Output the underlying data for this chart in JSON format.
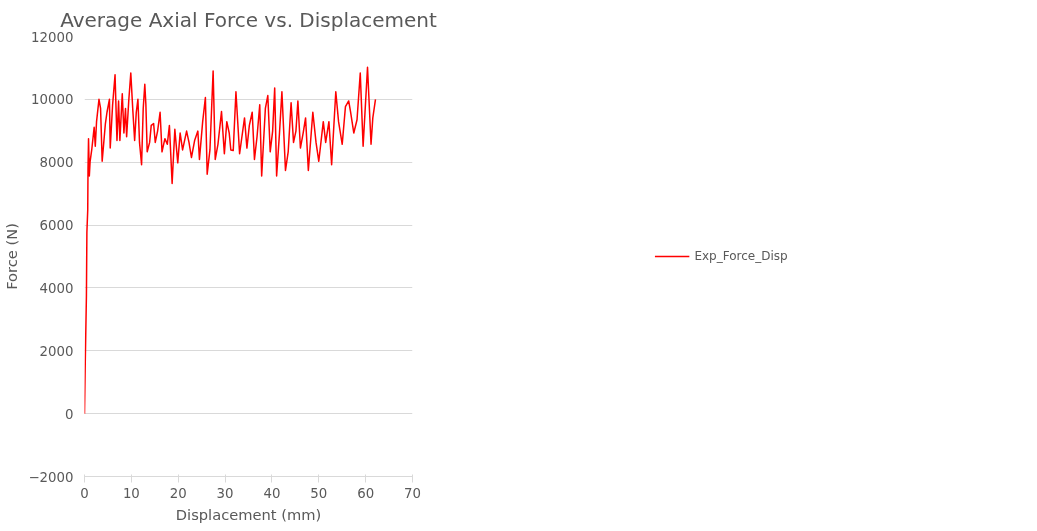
{
  "chart_data": {
    "type": "line",
    "title": "Average Axial Force vs. Displacement",
    "xlabel": "Displacement (mm)",
    "ylabel": "Force (N)",
    "xlim": [
      0,
      70
    ],
    "xticks": [
      0,
      10,
      20,
      30,
      40,
      50,
      60,
      70
    ],
    "ylim": [
      -2000,
      12000
    ],
    "yticks": [
      -2000,
      0,
      2000,
      4000,
      6000,
      8000,
      10000,
      12000
    ],
    "grid": "y",
    "legend": "right",
    "marker": "none",
    "line_style": "solid",
    "series": [
      {
        "name": "Exp_Force_Disp",
        "color": "#ff0000",
        "x": [
          0,
          0.17,
          0.41,
          0.51,
          0.69,
          0.75,
          0.86,
          1.03,
          1.2,
          1.54,
          2.06,
          2.3,
          2.57,
          3.09,
          3.43,
          3.77,
          4.46,
          4.8,
          5.32,
          5.49,
          6.0,
          6.52,
          6.93,
          7.27,
          7.55,
          8.06,
          8.41,
          8.75,
          8.99,
          9.44,
          9.88,
          10.29,
          10.7,
          11.05,
          11.4,
          11.74,
          12.18,
          12.53,
          12.87,
          13.1,
          13.38,
          13.9,
          14.24,
          14.75,
          15.1,
          15.6,
          16.13,
          16.54,
          17.16,
          17.67,
          18.12,
          18.7,
          19.28,
          19.9,
          20.41,
          20.93,
          21.79,
          22.3,
          22.82,
          23.5,
          24.19,
          24.53,
          25.22,
          25.8,
          26.18,
          26.77,
          27.45,
          27.9,
          28.48,
          29.24,
          29.85,
          30.37,
          30.88,
          31.23,
          31.74,
          32.32,
          33.1,
          34.15,
          34.66,
          35.18,
          35.79,
          36.27,
          36.82,
          37.4,
          37.81,
          38.6,
          39.12,
          39.63,
          40.15,
          40.59,
          41.0,
          41.59,
          42.13,
          42.89,
          43.47,
          44.09,
          44.61,
          45.12,
          45.54,
          46.08,
          46.67,
          47.18,
          47.77,
          48.73,
          49.41,
          50.0,
          50.96,
          51.47,
          52.16,
          52.74,
          53.63,
          54.22,
          55.0,
          55.69,
          56.38,
          56.79,
          57.47,
          58.16,
          58.85,
          59.46,
          60.4,
          61.15,
          61.53,
          62.1
        ],
        "values": [
          0,
          1700,
          3740,
          5770,
          6480,
          7800,
          8750,
          7560,
          8030,
          8390,
          9110,
          8510,
          9290,
          10000,
          9710,
          8030,
          9230,
          9590,
          10000,
          8450,
          9830,
          10780,
          8690,
          9950,
          8690,
          10180,
          8930,
          9710,
          8810,
          9950,
          10840,
          9710,
          8690,
          9590,
          10000,
          8630,
          7920,
          9710,
          10480,
          9830,
          8330,
          8630,
          9170,
          9230,
          8630,
          8990,
          9590,
          8330,
          8750,
          8570,
          9170,
          7320,
          9050,
          7980,
          8930,
          8390,
          8990,
          8630,
          8150,
          8690,
          8990,
          8090,
          9290,
          10060,
          7620,
          8390,
          10900,
          8090,
          8570,
          9610,
          8270,
          9290,
          8930,
          8390,
          8370,
          10240,
          8270,
          9410,
          8450,
          9170,
          9590,
          8090,
          8810,
          9830,
          7560,
          9710,
          10120,
          8330,
          8990,
          10360,
          7560,
          8870,
          10240,
          7740,
          8330,
          9890,
          8630,
          8990,
          9950,
          8450,
          8930,
          9410,
          7740,
          9590,
          8630,
          8030,
          9290,
          8630,
          9290,
          7920,
          10240,
          9290,
          8570,
          9770,
          9950,
          9590,
          8930,
          9350,
          10840,
          8510,
          11020,
          8570,
          9410,
          10000
        ]
      }
    ]
  }
}
